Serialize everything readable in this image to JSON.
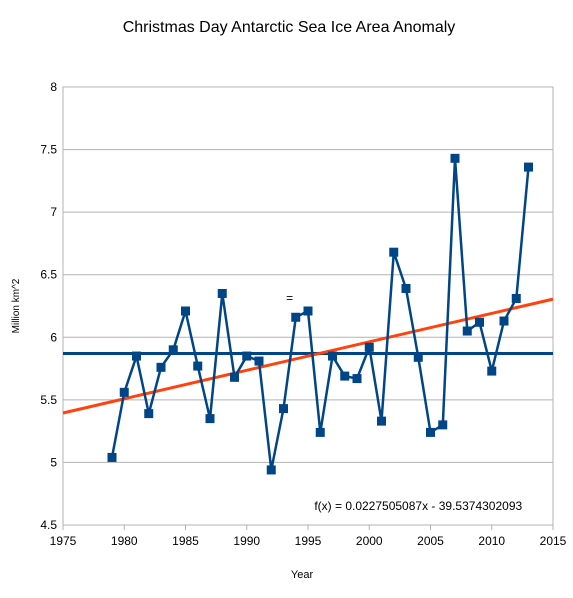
{
  "chart_data": {
    "type": "line",
    "title": "Christmas Day Antarctic Sea Ice Area Anomaly",
    "xlabel": "Year",
    "ylabel": "Million km^2",
    "xlim": [
      1975,
      2015
    ],
    "ylim": [
      4.5,
      8
    ],
    "xticks": [
      1975,
      1980,
      1985,
      1990,
      1995,
      2000,
      2005,
      2010,
      2015
    ],
    "yticks": [
      "4.5",
      "5",
      "5.5",
      "6",
      "6.5",
      "7",
      "7.5",
      "8"
    ],
    "grid": true,
    "legend": "none",
    "x": [
      1979,
      1980,
      1981,
      1982,
      1983,
      1984,
      1985,
      1986,
      1987,
      1988,
      1989,
      1990,
      1991,
      1992,
      1993,
      1994,
      1995,
      1996,
      1997,
      1998,
      1999,
      2000,
      2001,
      2002,
      2003,
      2004,
      2005,
      2006,
      2007,
      2008,
      2009,
      2010,
      2011,
      2012,
      2013
    ],
    "series": [
      {
        "values": [
          5.04,
          5.56,
          5.85,
          5.39,
          5.76,
          5.9,
          6.21,
          5.77,
          5.35,
          6.35,
          5.68,
          5.85,
          5.81,
          4.94,
          5.43,
          6.16,
          6.21,
          5.24,
          5.85,
          5.69,
          5.67,
          5.92,
          5.33,
          6.68,
          6.39,
          5.84,
          5.24,
          5.3,
          7.43,
          6.05,
          6.12,
          5.73,
          6.13,
          6.31,
          7.36
        ],
        "color": "#004586",
        "marker": "square"
      }
    ],
    "mean_line": {
      "value": 5.87,
      "color": "#004586"
    },
    "trendline": {
      "slope": 0.0227505087,
      "intercept": -39.5374302093,
      "color": "#ff420e"
    },
    "annotations": [
      {
        "text": "f(x) = 0.0227505087x - 39.5374302093",
        "at": [
          2004,
          4.62
        ]
      },
      {
        "text": "=",
        "at": [
          1993.5,
          6.28
        ]
      }
    ]
  }
}
